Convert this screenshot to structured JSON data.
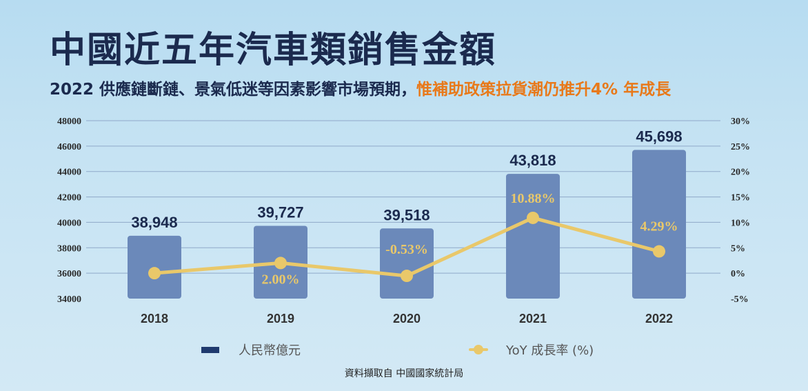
{
  "title": "中國近五年汽車類銷售金額",
  "subtitle": {
    "main": "2022 供應鏈斷鏈、景氣低迷等因素影響市場預期，",
    "highlight": "惟補助政策拉貨潮仍推升4% 年成長"
  },
  "source": "資料擷取自 中國國家統計局",
  "colors": {
    "bar": "#6b89ba",
    "line": "#e9c86a",
    "legend_bar": "#1f3a6e",
    "title": "#1b2a4e",
    "highlight": "#e8791a"
  },
  "chart_data": {
    "type": "bar+line",
    "categories": [
      "2018",
      "2019",
      "2020",
      "2021",
      "2022"
    ],
    "series": [
      {
        "name": "人民幣億元",
        "type": "bar",
        "axis": "left",
        "values": [
          38948,
          39727,
          39518,
          43818,
          45698
        ],
        "labels": [
          "38,948",
          "39,727",
          "39,518",
          "43,818",
          "45,698"
        ]
      },
      {
        "name": "YoY 成長率 (%)",
        "type": "line",
        "axis": "right",
        "values": [
          0,
          2.0,
          -0.53,
          10.88,
          4.29
        ],
        "labels": [
          "",
          "2.00%",
          "-0.53%",
          "10.88%",
          "4.29%"
        ]
      }
    ],
    "left_axis": {
      "ylim": [
        34000,
        48000
      ],
      "ticks": [
        "48000",
        "46000",
        "44000",
        "42000",
        "40000",
        "38000",
        "36000",
        "34000"
      ]
    },
    "right_axis": {
      "ylim": [
        -5,
        30
      ],
      "ticks": [
        "30%",
        "25%",
        "20%",
        "15%",
        "10%",
        "5%",
        "0%",
        "-5%"
      ]
    },
    "grid": true,
    "legend": "bottom"
  }
}
